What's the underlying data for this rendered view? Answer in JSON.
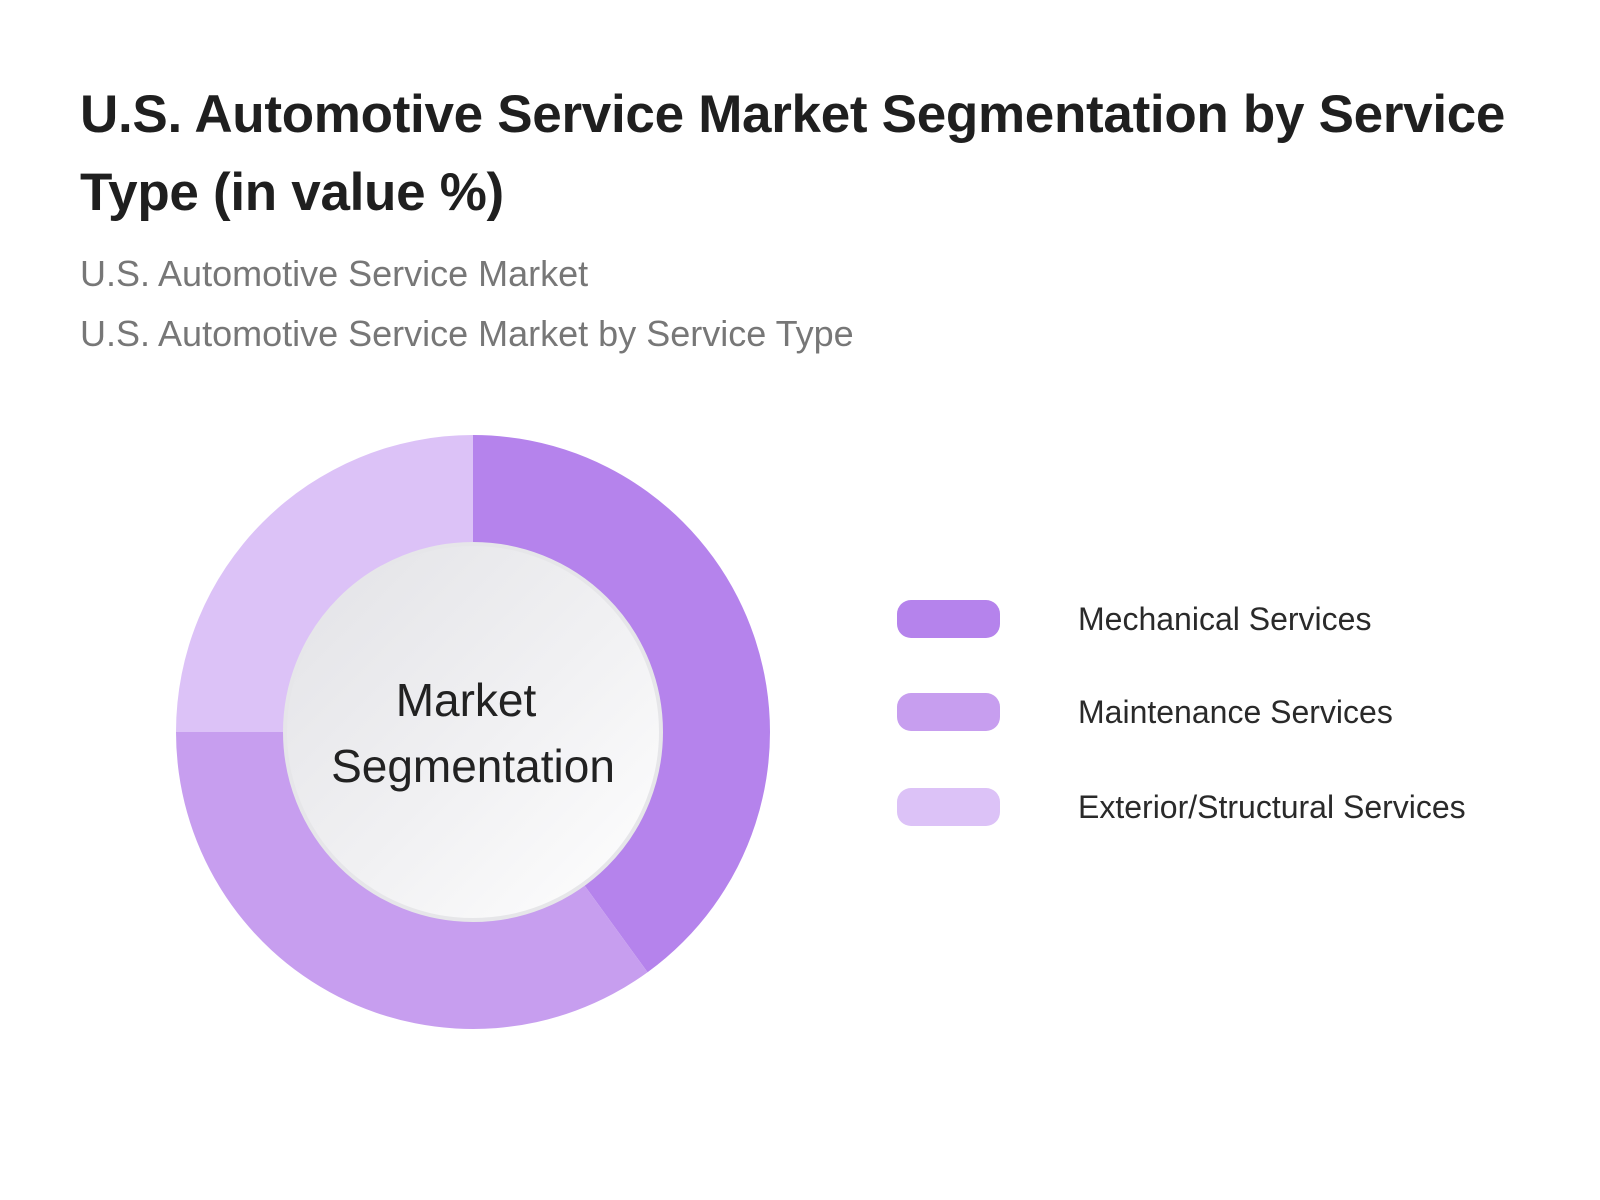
{
  "header": {
    "title": "U.S. Automotive Service Market Segmentation by Service Type (in value %)",
    "subtitle_1": "U.S. Automotive Service Market",
    "subtitle_2": "U.S. Automotive Service Market by Service Type"
  },
  "chart_data": {
    "type": "pie",
    "title": "U.S. Automotive Service Market Segmentation by Service Type (in value %)",
    "center_label": [
      "Market",
      "Segmentation"
    ],
    "categories": [
      "Mechanical Services",
      "Maintenance Services",
      "Exterior/Structural Services"
    ],
    "values": [
      40,
      35,
      25
    ],
    "colors": [
      "#b583ec",
      "#c79eef",
      "#dcc2f7"
    ],
    "legend_position": "right",
    "data_labels_shown": false
  }
}
